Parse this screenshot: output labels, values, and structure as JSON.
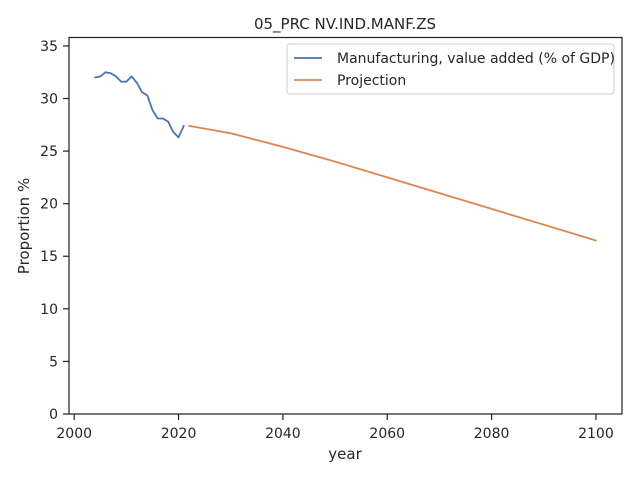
{
  "chart_data": {
    "type": "line",
    "title": "05_PRC NV.IND.MANF.ZS",
    "xlabel": "year",
    "ylabel": "Proportion %",
    "xlim": [
      1999,
      2105
    ],
    "ylim": [
      0,
      35.8
    ],
    "xticks": [
      2000,
      2020,
      2040,
      2060,
      2080,
      2100
    ],
    "yticks": [
      0,
      5,
      10,
      15,
      20,
      25,
      30,
      35
    ],
    "grid": false,
    "legend_position": "top-right",
    "series": [
      {
        "name": "Manufacturing, value added (% of GDP)",
        "color": "#4c72b0",
        "x": [
          2004,
          2005,
          2006,
          2007,
          2008,
          2009,
          2010,
          2011,
          2012,
          2013,
          2014,
          2015,
          2016,
          2017,
          2018,
          2019,
          2020,
          2021
        ],
        "y": [
          32.0,
          32.1,
          32.5,
          32.4,
          32.1,
          31.6,
          31.6,
          32.1,
          31.5,
          30.6,
          30.3,
          28.9,
          28.1,
          28.1,
          27.8,
          26.8,
          26.3,
          27.4
        ]
      },
      {
        "name": "Projection",
        "color": "#dd8452",
        "x": [
          2022,
          2030,
          2040,
          2050,
          2060,
          2070,
          2080,
          2090,
          2100
        ],
        "y": [
          27.4,
          26.7,
          25.4,
          24.0,
          22.5,
          21.0,
          19.5,
          18.0,
          16.5
        ]
      }
    ]
  }
}
